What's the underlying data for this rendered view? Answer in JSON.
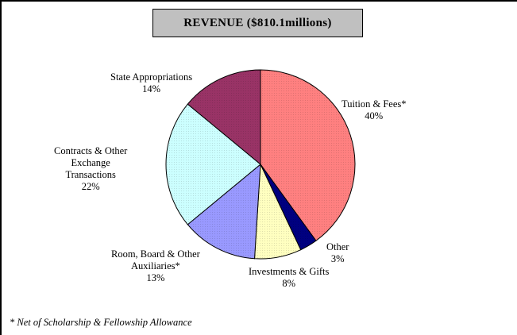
{
  "title": "REVENUE ($810.1millions)",
  "footnote": "* Net of Scholarship & Fellowship Allowance",
  "colors": {
    "tuition": "#ff8080",
    "other": "#000080",
    "investments": "#ffffc0",
    "room_board": "#9999ff",
    "contracts": "#ccffff",
    "state": "#993366",
    "title_bg": "#c0c0c0"
  },
  "labels": {
    "tuition": {
      "line1": "Tuition & Fees*",
      "pct": "40%"
    },
    "other": {
      "line1": "Other",
      "pct": "3%"
    },
    "investments": {
      "line1": "Investments & Gifts",
      "pct": "8%"
    },
    "room_board": {
      "line1": "Room, Board & Other",
      "line2": "Auxiliaries*",
      "pct": "13%"
    },
    "contracts": {
      "line1": "Contracts & Other",
      "line2": "Exchange",
      "line3": "Transactions",
      "pct": "22%"
    },
    "state": {
      "line1": "State Appropriations",
      "pct": "14%"
    }
  },
  "chart_data": {
    "type": "pie",
    "title": "REVENUE ($810.1millions)",
    "categories": [
      "Tuition & Fees*",
      "Other",
      "Investments & Gifts",
      "Room, Board & Other Auxiliaries*",
      "Contracts & Other Exchange Transactions",
      "State Appropriations"
    ],
    "values": [
      40,
      3,
      8,
      13,
      22,
      14
    ],
    "unit": "%",
    "start_angle": "12 o'clock, clockwise",
    "annotations": [
      "* Net of Scholarship & Fellowship Allowance"
    ],
    "legend": "none (data labels on slices)"
  }
}
